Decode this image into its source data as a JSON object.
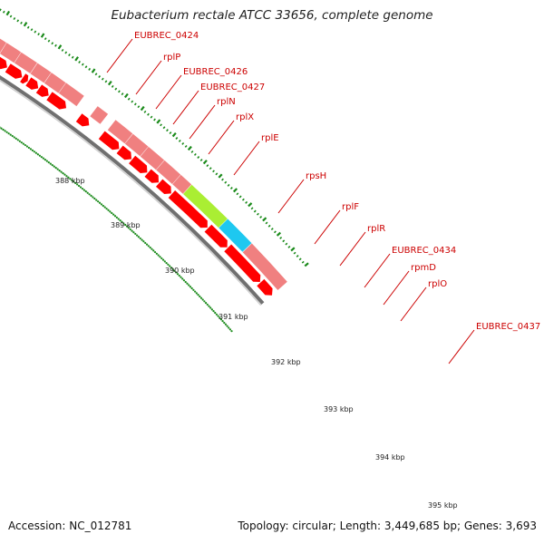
{
  "title": "Eubacterium rectale ATCC 33656, complete genome",
  "accession": "Accession: NC_012781",
  "topology": "Topology: circular; Length: 3,449,685 bp; Genes: 3,693",
  "colors": {
    "cds_forward": "#f08080",
    "cds_reverse": "#ff0000",
    "gene_highlight_green": "#aaee33",
    "gene_highlight_blue": "#1ec8f0",
    "backbone": "#888888",
    "tick": "#1a8a1a",
    "label": "#cc0000"
  },
  "gene_labels": [
    "EUBREC_0424",
    "rplP",
    "EUBREC_0426",
    "EUBREC_0427",
    "rplN",
    "rplX",
    "rplE",
    "rpsH",
    "rplF",
    "rplR",
    "EUBREC_0434",
    "rpmD",
    "rplO",
    "EUBREC_0437"
  ],
  "tick_labels": [
    "388 kbp",
    "389 kbp",
    "390 kbp",
    "391 kbp",
    "392 kbp",
    "393 kbp",
    "394 kbp",
    "395 kbp"
  ]
}
